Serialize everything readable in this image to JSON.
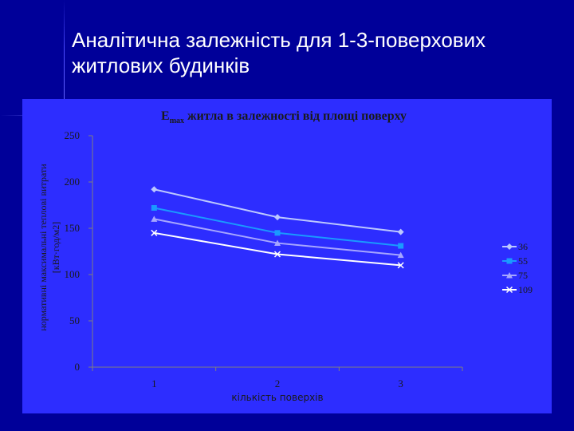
{
  "slide": {
    "title_line1": "Аналітична залежність для 1-3-поверхових",
    "title_line2": "житлових будинків"
  },
  "colors": {
    "background": "#000099",
    "plot_area": "#2d2dff",
    "text": "#1a1a1a",
    "title_text": "#ffffff"
  },
  "chart_data": {
    "type": "line",
    "title_prefix": "E",
    "title_subscript": "max",
    "title_rest": " житла в залежності від площі поверху",
    "xlabel": "кількість поверхів",
    "ylabel_line1": "нормативні максимальні теплові витрати",
    "ylabel_line2": "[кВт·год/м2]",
    "categories": [
      "1",
      "2",
      "3"
    ],
    "ylim": [
      0,
      250
    ],
    "yticks": [
      0,
      50,
      100,
      150,
      200,
      250
    ],
    "grid": false,
    "legend_position": "right",
    "series": [
      {
        "name": "36",
        "values": [
          192,
          162,
          146
        ],
        "color": "#bcc8ff",
        "marker": "diamond"
      },
      {
        "name": "55",
        "values": [
          172,
          145,
          131
        ],
        "color": "#1a9aff",
        "marker": "square"
      },
      {
        "name": "75",
        "values": [
          160,
          134,
          121
        ],
        "color": "#a6a6ff",
        "marker": "triangle"
      },
      {
        "name": "109",
        "values": [
          145,
          122,
          110
        ],
        "color": "#ffffff",
        "marker": "x"
      }
    ]
  }
}
